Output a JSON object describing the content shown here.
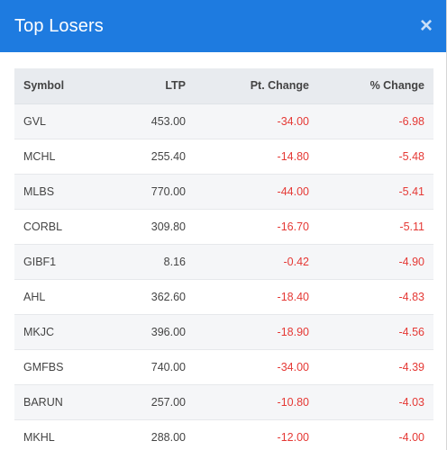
{
  "modal": {
    "title": "Top Losers",
    "close_glyph": "×"
  },
  "table": {
    "headers": {
      "symbol": "Symbol",
      "ltp": "LTP",
      "pt_change": "Pt. Change",
      "pct_change": "% Change"
    },
    "rows": [
      {
        "symbol": "GVL",
        "ltp": "453.00",
        "pt_change": "-34.00",
        "pct_change": "-6.98"
      },
      {
        "symbol": "MCHL",
        "ltp": "255.40",
        "pt_change": "-14.80",
        "pct_change": "-5.48"
      },
      {
        "symbol": "MLBS",
        "ltp": "770.00",
        "pt_change": "-44.00",
        "pct_change": "-5.41"
      },
      {
        "symbol": "CORBL",
        "ltp": "309.80",
        "pt_change": "-16.70",
        "pct_change": "-5.11"
      },
      {
        "symbol": "GIBF1",
        "ltp": "8.16",
        "pt_change": "-0.42",
        "pct_change": "-4.90"
      },
      {
        "symbol": "AHL",
        "ltp": "362.60",
        "pt_change": "-18.40",
        "pct_change": "-4.83"
      },
      {
        "symbol": "MKJC",
        "ltp": "396.00",
        "pt_change": "-18.90",
        "pct_change": "-4.56"
      },
      {
        "symbol": "GMFBS",
        "ltp": "740.00",
        "pt_change": "-34.00",
        "pct_change": "-4.39"
      },
      {
        "symbol": "BARUN",
        "ltp": "257.00",
        "pt_change": "-10.80",
        "pct_change": "-4.03"
      },
      {
        "symbol": "MKHL",
        "ltp": "288.00",
        "pt_change": "-12.00",
        "pct_change": "-4.00"
      }
    ]
  },
  "colors": {
    "header_bg": "#1e7be0",
    "negative": "#e53935"
  },
  "icons": {
    "close": "close-icon"
  }
}
